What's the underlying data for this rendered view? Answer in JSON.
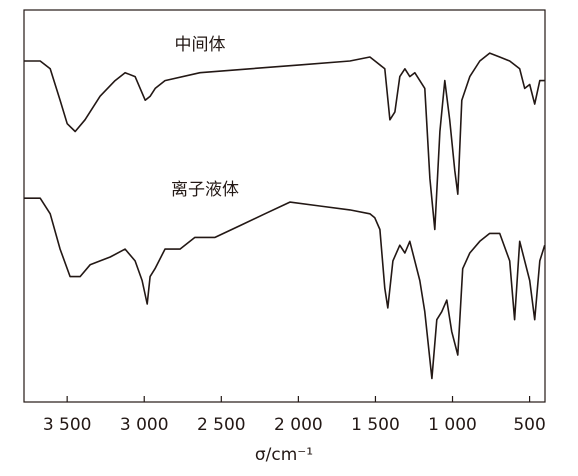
{
  "chart_data": {
    "type": "line",
    "xlabel": "σ/cm⁻¹",
    "xlim": [
      3780,
      400
    ],
    "ylim": [
      0,
      100
    ],
    "xticks": [
      {
        "value": 3500,
        "label": "3 500"
      },
      {
        "value": 3000,
        "label": "3 000"
      },
      {
        "value": 2500,
        "label": "2 500"
      },
      {
        "value": 2000,
        "label": "2 000"
      },
      {
        "value": 1500,
        "label": "1 500"
      },
      {
        "value": 1000,
        "label": "1 000"
      },
      500
    ],
    "series": [
      {
        "name": "中间体",
        "color": "#231815",
        "x": [
          3779,
          3675,
          3610,
          3546,
          3500,
          3448,
          3384,
          3286,
          3189,
          3124,
          3059,
          2994,
          2961,
          2929,
          2865,
          2638,
          2314,
          1990,
          1666,
          1536,
          1503,
          1439,
          1406,
          1374,
          1342,
          1309,
          1277,
          1245,
          1180,
          1147,
          1115,
          1082,
          1050,
          1018,
          985,
          966,
          940,
          888,
          823,
          759,
          694,
          629,
          564,
          532,
          499,
          467,
          434,
          402
        ],
        "values": [
          87,
          87,
          85,
          77,
          71,
          69,
          72,
          78,
          82,
          84,
          83,
          77,
          78,
          80,
          82,
          84,
          85,
          86,
          87,
          88,
          87,
          85,
          72,
          74,
          83,
          85,
          83,
          84,
          80,
          57,
          44,
          69,
          82,
          72,
          59,
          53,
          77,
          83,
          87,
          89,
          88,
          87,
          85,
          80,
          81,
          76,
          82,
          82
        ]
      },
      {
        "name": "离子液体",
        "color": "#231815",
        "x": [
          3779,
          3675,
          3610,
          3546,
          3481,
          3416,
          3351,
          3286,
          3221,
          3124,
          3059,
          3014,
          2981,
          2962,
          2930,
          2865,
          2768,
          2671,
          2541,
          2379,
          2217,
          2055,
          1861,
          1666,
          1536,
          1504,
          1471,
          1439,
          1420,
          1387,
          1342,
          1309,
          1277,
          1212,
          1180,
          1134,
          1102,
          1070,
          1037,
          1005,
          966,
          934,
          888,
          823,
          759,
          694,
          629,
          597,
          564,
          499,
          467,
          434,
          402
        ],
        "values": [
          52,
          52,
          48,
          39,
          32,
          32,
          35,
          36,
          37,
          39,
          36,
          31,
          25,
          32,
          34,
          39,
          39,
          42,
          42,
          45,
          48,
          51,
          50,
          49,
          48,
          47,
          44,
          29,
          24,
          36,
          40,
          38,
          41,
          31,
          23,
          6,
          21,
          23,
          26,
          18,
          12,
          34,
          38,
          41,
          43,
          43,
          36,
          21,
          41,
          31,
          21,
          36,
          40
        ]
      }
    ]
  }
}
